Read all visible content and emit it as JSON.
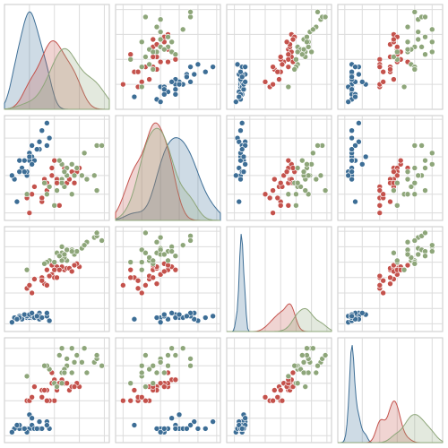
{
  "chart_data": {
    "type": "pairplot",
    "grid": true,
    "limits": [
      [
        4.0,
        8.2
      ],
      [
        1.8,
        4.6
      ],
      [
        0.5,
        7.3
      ],
      [
        -0.2,
        2.8
      ]
    ],
    "ticks": [
      [
        5,
        6,
        7,
        8
      ],
      [
        2,
        2.5,
        3,
        3.5,
        4,
        4.5
      ],
      [
        1,
        2,
        3,
        4,
        5,
        6,
        7
      ],
      [
        0,
        0.5,
        1,
        1.5,
        2,
        2.5
      ]
    ],
    "series": [
      {
        "color": "#3d6e96",
        "values": [
          [
            5.1,
            3.5,
            1.4,
            0.2
          ],
          [
            4.9,
            3.0,
            1.4,
            0.2
          ],
          [
            4.7,
            3.2,
            1.3,
            0.2
          ],
          [
            4.6,
            3.1,
            1.5,
            0.2
          ],
          [
            5.0,
            3.6,
            1.4,
            0.2
          ],
          [
            5.4,
            3.9,
            1.7,
            0.4
          ],
          [
            4.6,
            3.4,
            1.4,
            0.3
          ],
          [
            5.0,
            3.4,
            1.5,
            0.2
          ],
          [
            4.4,
            2.9,
            1.4,
            0.2
          ],
          [
            4.9,
            3.1,
            1.5,
            0.1
          ],
          [
            5.4,
            3.7,
            1.5,
            0.2
          ],
          [
            4.8,
            3.4,
            1.6,
            0.2
          ],
          [
            4.3,
            3.0,
            1.1,
            0.1
          ],
          [
            5.8,
            4.0,
            1.2,
            0.2
          ],
          [
            5.7,
            4.4,
            1.5,
            0.4
          ],
          [
            5.4,
            3.9,
            1.3,
            0.4
          ],
          [
            5.1,
            3.8,
            1.5,
            0.3
          ],
          [
            5.7,
            3.8,
            1.7,
            0.3
          ],
          [
            5.2,
            3.4,
            1.4,
            0.2
          ],
          [
            4.8,
            3.1,
            1.6,
            0.2
          ],
          [
            5.5,
            4.2,
            1.4,
            0.2
          ],
          [
            4.5,
            2.3,
            1.3,
            0.3
          ],
          [
            5.0,
            3.5,
            1.6,
            0.6
          ],
          [
            5.1,
            3.3,
            1.7,
            0.5
          ],
          [
            5.3,
            3.7,
            1.5,
            0.2
          ]
        ]
      },
      {
        "color": "#c4524c",
        "values": [
          [
            7.0,
            3.2,
            4.7,
            1.4
          ],
          [
            6.4,
            3.2,
            4.5,
            1.5
          ],
          [
            6.9,
            3.1,
            4.9,
            1.5
          ],
          [
            5.5,
            2.3,
            4.0,
            1.3
          ],
          [
            6.5,
            2.8,
            4.6,
            1.5
          ],
          [
            5.7,
            2.8,
            4.5,
            1.3
          ],
          [
            6.3,
            3.3,
            4.7,
            1.6
          ],
          [
            4.9,
            2.4,
            3.3,
            1.0
          ],
          [
            6.6,
            2.9,
            4.6,
            1.3
          ],
          [
            5.2,
            2.7,
            3.9,
            1.4
          ],
          [
            5.0,
            2.0,
            3.5,
            1.0
          ],
          [
            5.9,
            3.0,
            4.2,
            1.5
          ],
          [
            6.0,
            2.2,
            4.0,
            1.0
          ],
          [
            6.1,
            2.9,
            4.7,
            1.4
          ],
          [
            5.6,
            2.9,
            3.6,
            1.3
          ],
          [
            6.7,
            3.1,
            4.4,
            1.4
          ],
          [
            5.8,
            2.7,
            4.1,
            1.0
          ],
          [
            6.2,
            2.2,
            4.5,
            1.5
          ],
          [
            5.9,
            3.2,
            4.8,
            1.8
          ],
          [
            6.1,
            2.8,
            4.0,
            1.3
          ],
          [
            6.8,
            2.8,
            4.8,
            1.4
          ],
          [
            5.5,
            2.4,
            3.8,
            1.1
          ],
          [
            6.0,
            3.4,
            4.5,
            1.6
          ],
          [
            5.7,
            2.6,
            3.5,
            1.0
          ],
          [
            5.1,
            2.5,
            3.0,
            1.1
          ]
        ]
      },
      {
        "color": "#8ea67a",
        "values": [
          [
            6.3,
            3.3,
            6.0,
            2.5
          ],
          [
            5.8,
            2.7,
            5.1,
            1.9
          ],
          [
            7.1,
            3.0,
            5.9,
            2.1
          ],
          [
            6.3,
            2.9,
            5.6,
            1.8
          ],
          [
            6.5,
            3.0,
            5.8,
            2.2
          ],
          [
            7.6,
            3.0,
            6.6,
            2.1
          ],
          [
            4.9,
            2.5,
            4.5,
            1.7
          ],
          [
            7.3,
            2.9,
            6.3,
            1.8
          ],
          [
            6.7,
            2.5,
            5.8,
            1.8
          ],
          [
            7.2,
            3.6,
            6.1,
            2.5
          ],
          [
            6.5,
            3.2,
            5.1,
            2.0
          ],
          [
            6.4,
            2.7,
            5.3,
            1.9
          ],
          [
            6.8,
            3.0,
            5.5,
            2.1
          ],
          [
            5.7,
            2.5,
            5.0,
            2.0
          ],
          [
            7.7,
            3.8,
            6.7,
            2.2
          ],
          [
            7.7,
            2.6,
            6.9,
            2.3
          ],
          [
            6.0,
            2.2,
            5.0,
            1.5
          ],
          [
            6.9,
            3.2,
            5.7,
            2.3
          ],
          [
            5.6,
            2.8,
            4.9,
            2.0
          ],
          [
            7.9,
            3.8,
            6.4,
            2.0
          ],
          [
            6.3,
            2.8,
            5.1,
            1.5
          ],
          [
            6.1,
            2.6,
            5.6,
            1.4
          ],
          [
            6.4,
            3.1,
            5.5,
            1.8
          ],
          [
            6.7,
            3.3,
            5.7,
            2.5
          ],
          [
            6.2,
            3.4,
            5.4,
            2.3
          ]
        ]
      }
    ]
  }
}
